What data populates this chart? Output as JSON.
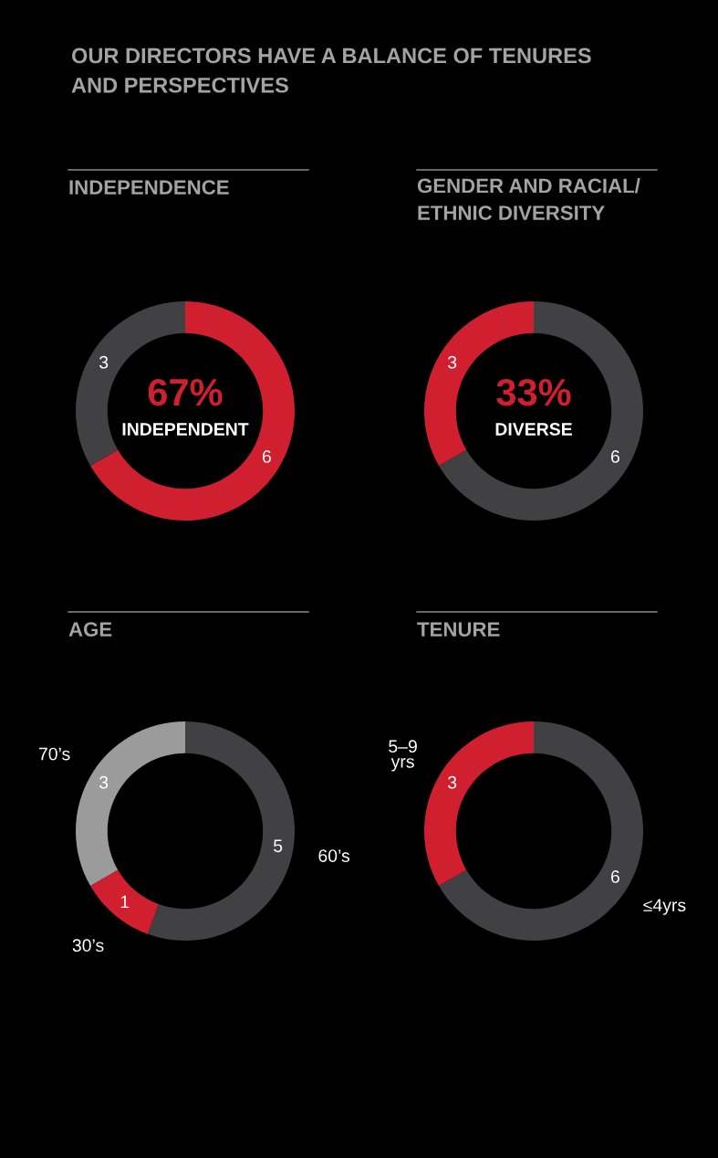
{
  "chart_data": [
    {
      "type": "other",
      "title": "OUR DIRECTORS HAVE A BALANCE OF TENURES\nAND PERSPECTIVES"
    },
    {
      "type": "donut",
      "title": "INDEPENDENCE",
      "categories": [
        null,
        null
      ],
      "values": [
        6,
        3
      ],
      "colors": [
        "#d02030",
        "#414143"
      ],
      "data_labels": true,
      "annotations": [
        "67%",
        "INDEPENDENT"
      ]
    },
    {
      "type": "donut",
      "title": "GENDER AND RACIAL/\nETHNIC DIVERSITY",
      "categories": [
        null,
        null
      ],
      "values": [
        6,
        3
      ],
      "colors": [
        "#414143",
        "#d02030"
      ],
      "data_labels": true,
      "annotations": [
        "33%",
        "DIVERSE"
      ]
    },
    {
      "type": "donut",
      "title": "AGE",
      "categories": [
        "60’s",
        "30’s",
        "70’s"
      ],
      "values": [
        5,
        1,
        3
      ],
      "colors": [
        "#414143",
        "#d02030",
        "#9b9b9b"
      ],
      "data_labels": true
    },
    {
      "type": "donut",
      "title": "TENURE",
      "categories": [
        "≤4yrs",
        "5–9\nyrs"
      ],
      "values": [
        6,
        3
      ],
      "colors": [
        "#414143",
        "#d02030"
      ],
      "data_labels": true
    }
  ]
}
